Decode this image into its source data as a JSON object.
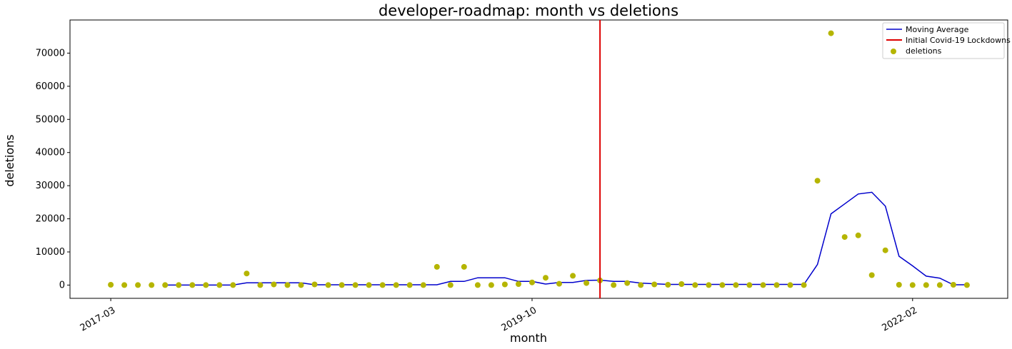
{
  "chart_data": {
    "type": "scatter",
    "title": "developer-roadmap: month vs deletions",
    "xlabel": "month",
    "ylabel": "deletions",
    "x_ticks": [
      "2017-03",
      "2019-10",
      "2022-02"
    ],
    "y_ticks": [
      0,
      10000,
      20000,
      30000,
      40000,
      50000,
      60000,
      70000
    ],
    "ylim": [
      -4000,
      80000
    ],
    "xlim": [
      "2016-12",
      "2022-09"
    ],
    "legend_position": "top-right",
    "legend": [
      "Moving Average",
      "Initial Covid-19 Lockdowns",
      "deletions"
    ],
    "colors": {
      "moving_average": "#0000cc",
      "lockdown": "#dd0000",
      "deletions": "#b5b500"
    },
    "lockdown_month": "2020-03",
    "series": [
      {
        "name": "deletions",
        "kind": "scatter",
        "x": [
          "2017-03",
          "2017-04",
          "2017-05",
          "2017-06",
          "2017-07",
          "2017-08",
          "2017-09",
          "2017-10",
          "2017-11",
          "2017-12",
          "2018-01",
          "2018-02",
          "2018-03",
          "2018-04",
          "2018-05",
          "2018-06",
          "2018-07",
          "2018-08",
          "2018-09",
          "2018-10",
          "2018-11",
          "2018-12",
          "2019-01",
          "2019-02",
          "2019-03",
          "2019-04",
          "2019-05",
          "2019-06",
          "2019-07",
          "2019-08",
          "2019-09",
          "2019-10",
          "2019-11",
          "2019-12",
          "2020-01",
          "2020-02",
          "2020-03",
          "2020-04",
          "2020-05",
          "2020-06",
          "2020-07",
          "2020-08",
          "2020-09",
          "2020-10",
          "2020-11",
          "2020-12",
          "2021-01",
          "2021-02",
          "2021-03",
          "2021-04",
          "2021-05",
          "2021-06",
          "2021-07",
          "2021-08",
          "2021-09",
          "2021-10",
          "2021-11",
          "2021-12",
          "2022-01",
          "2022-02",
          "2022-03",
          "2022-04",
          "2022-05",
          "2022-06"
        ],
        "values": [
          100,
          0,
          0,
          0,
          0,
          0,
          0,
          0,
          0,
          0,
          3500,
          0,
          200,
          0,
          0,
          200,
          0,
          0,
          0,
          0,
          0,
          0,
          0,
          0,
          5500,
          0,
          5500,
          0,
          0,
          200,
          300,
          800,
          2200,
          400,
          2800,
          600,
          1400,
          0,
          600,
          0,
          200,
          100,
          300,
          0,
          0,
          0,
          0,
          0,
          0,
          0,
          0,
          0,
          31500,
          76000,
          14500,
          15000,
          3000,
          10500,
          100,
          0,
          0,
          0,
          100,
          0
        ]
      },
      {
        "name": "Moving Average",
        "kind": "line",
        "x": [
          "2017-07",
          "2017-08",
          "2017-09",
          "2017-10",
          "2017-11",
          "2017-12",
          "2018-01",
          "2018-02",
          "2018-03",
          "2018-04",
          "2018-05",
          "2018-06",
          "2018-07",
          "2018-08",
          "2018-09",
          "2018-10",
          "2018-11",
          "2018-12",
          "2019-01",
          "2019-02",
          "2019-03",
          "2019-04",
          "2019-05",
          "2019-06",
          "2019-07",
          "2019-08",
          "2019-09",
          "2019-10",
          "2019-11",
          "2019-12",
          "2020-01",
          "2020-02",
          "2020-03",
          "2020-04",
          "2020-05",
          "2020-06",
          "2020-07",
          "2020-08",
          "2020-09",
          "2020-10",
          "2020-11",
          "2020-12",
          "2021-01",
          "2021-02",
          "2021-03",
          "2021-04",
          "2021-05",
          "2021-06",
          "2021-07",
          "2021-08",
          "2021-09",
          "2021-10",
          "2021-11",
          "2021-12",
          "2022-01",
          "2022-02",
          "2022-03",
          "2022-04",
          "2022-05",
          "2022-06"
        ],
        "values": [
          0,
          0,
          0,
          0,
          0,
          0,
          700,
          700,
          700,
          700,
          700,
          100,
          100,
          100,
          100,
          100,
          100,
          100,
          100,
          100,
          100,
          1100,
          1100,
          2200,
          2200,
          2200,
          1100,
          1100,
          300,
          800,
          800,
          1400,
          1500,
          1100,
          1100,
          600,
          400,
          200,
          200,
          200,
          200,
          200,
          200,
          200,
          200,
          200,
          200,
          200,
          6200,
          21500,
          24500,
          27500,
          28000,
          23800,
          8700,
          5800,
          2700,
          2100,
          100,
          100
        ]
      }
    ]
  }
}
